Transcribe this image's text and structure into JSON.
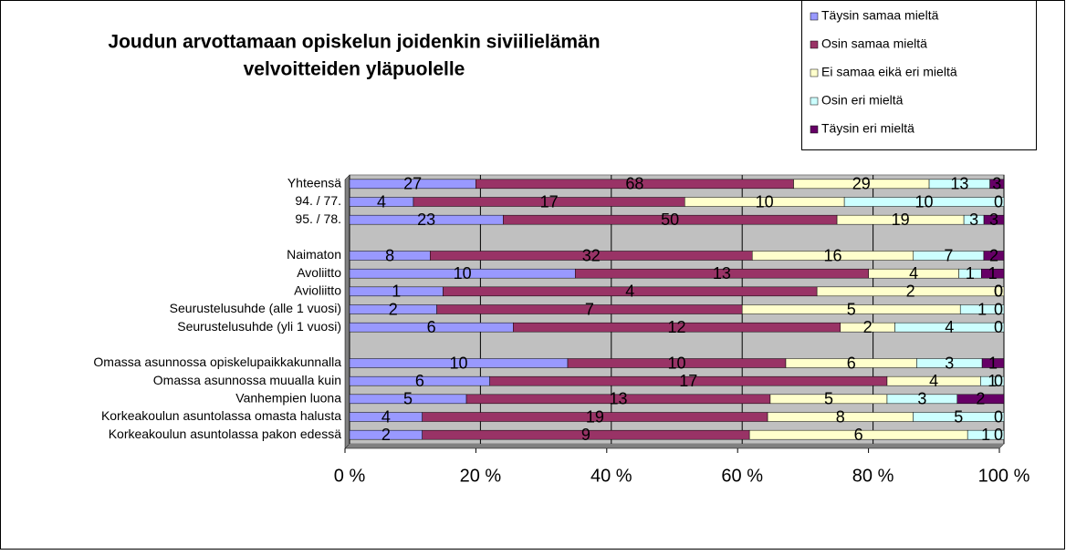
{
  "chart_data": {
    "type": "bar",
    "orientation": "horizontal",
    "stack": "percent",
    "title": [
      "Joudun arvottamaan opiskelun joidenkin siviilielämän",
      "velvoitteiden yläpuolelle"
    ],
    "categories": [
      "Yhteensä",
      "94. / 77.",
      "95. / 78.",
      null,
      "Naimaton",
      "Avoliitto",
      "Avioliitto",
      "Seurustelusuhde (alle 1 vuosi)",
      "Seurustelusuhde (yli 1 vuosi)",
      null,
      "Omassa asunnossa opiskelupaikkakunnalla",
      "Omassa asunnossa muualla kuin",
      "Vanhempien luona",
      "Korkeakoulun asuntolassa omasta halusta",
      "Korkeakoulun asuntolassa pakon edessä"
    ],
    "series": [
      {
        "name": "Täysin samaa mieltä",
        "color": "#9999ff",
        "values": [
          27,
          4,
          23,
          null,
          8,
          10,
          1,
          2,
          6,
          null,
          10,
          6,
          5,
          4,
          2
        ]
      },
      {
        "name": "Osin samaa mieltä",
        "color": "#993366",
        "values": [
          68,
          17,
          50,
          null,
          32,
          13,
          4,
          7,
          12,
          null,
          10,
          17,
          13,
          19,
          9
        ]
      },
      {
        "name": "Ei samaa eikä eri mieltä",
        "color": "#ffffcc",
        "values": [
          29,
          10,
          19,
          null,
          16,
          4,
          2,
          5,
          2,
          null,
          6,
          4,
          5,
          8,
          6
        ]
      },
      {
        "name": "Osin eri mieltä",
        "color": "#ccffff",
        "values": [
          13,
          10,
          3,
          null,
          7,
          1,
          0,
          1,
          4,
          null,
          3,
          1,
          3,
          5,
          1
        ]
      },
      {
        "name": "Täysin eri mieltä",
        "color": "#660066",
        "values": [
          3,
          0,
          3,
          null,
          2,
          1,
          0,
          0,
          0,
          null,
          1,
          0,
          2,
          0,
          0
        ]
      }
    ],
    "xlim": [
      0,
      100
    ],
    "xticks": [
      {
        "value": 0,
        "label": "0 %"
      },
      {
        "value": 20,
        "label": "20 %"
      },
      {
        "value": 40,
        "label": "40 %"
      },
      {
        "value": 60,
        "label": "60 %"
      },
      {
        "value": 80,
        "label": "80 %"
      },
      {
        "value": 100,
        "label": "100 %"
      }
    ],
    "grid": true,
    "legend": "top-right",
    "plot_background": "#c0c0c0"
  }
}
